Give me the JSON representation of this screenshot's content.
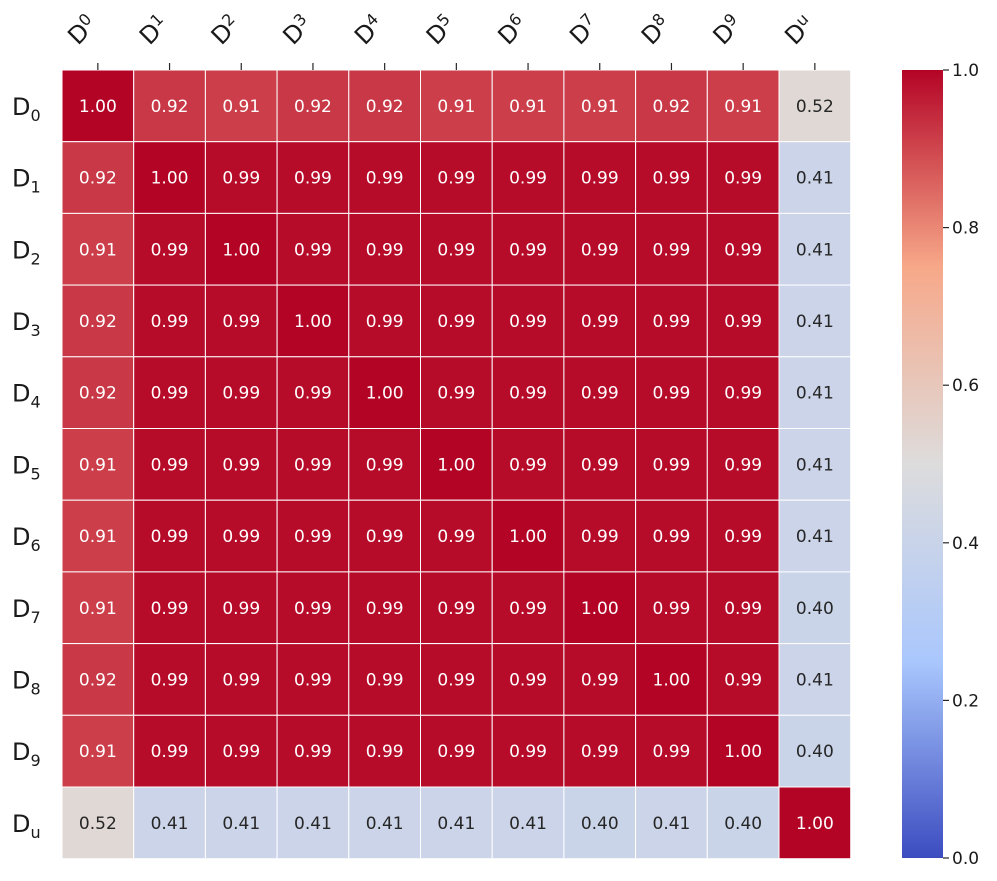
{
  "chart_data": {
    "type": "heatmap",
    "title": "",
    "xlabel": "",
    "ylabel": "",
    "row_labels": [
      {
        "base": "D",
        "sub": "0"
      },
      {
        "base": "D",
        "sub": "1"
      },
      {
        "base": "D",
        "sub": "2"
      },
      {
        "base": "D",
        "sub": "3"
      },
      {
        "base": "D",
        "sub": "4"
      },
      {
        "base": "D",
        "sub": "5"
      },
      {
        "base": "D",
        "sub": "6"
      },
      {
        "base": "D",
        "sub": "7"
      },
      {
        "base": "D",
        "sub": "8"
      },
      {
        "base": "D",
        "sub": "9"
      },
      {
        "base": "D",
        "sub": "u"
      }
    ],
    "col_labels": [
      {
        "base": "D",
        "sub": "0"
      },
      {
        "base": "D",
        "sub": "1"
      },
      {
        "base": "D",
        "sub": "2"
      },
      {
        "base": "D",
        "sub": "3"
      },
      {
        "base": "D",
        "sub": "4"
      },
      {
        "base": "D",
        "sub": "5"
      },
      {
        "base": "D",
        "sub": "6"
      },
      {
        "base": "D",
        "sub": "7"
      },
      {
        "base": "D",
        "sub": "8"
      },
      {
        "base": "D",
        "sub": "9"
      },
      {
        "base": "D",
        "sub": "u"
      }
    ],
    "values": [
      [
        1.0,
        0.92,
        0.91,
        0.92,
        0.92,
        0.91,
        0.91,
        0.91,
        0.92,
        0.91,
        0.52
      ],
      [
        0.92,
        1.0,
        0.99,
        0.99,
        0.99,
        0.99,
        0.99,
        0.99,
        0.99,
        0.99,
        0.41
      ],
      [
        0.91,
        0.99,
        1.0,
        0.99,
        0.99,
        0.99,
        0.99,
        0.99,
        0.99,
        0.99,
        0.41
      ],
      [
        0.92,
        0.99,
        0.99,
        1.0,
        0.99,
        0.99,
        0.99,
        0.99,
        0.99,
        0.99,
        0.41
      ],
      [
        0.92,
        0.99,
        0.99,
        0.99,
        1.0,
        0.99,
        0.99,
        0.99,
        0.99,
        0.99,
        0.41
      ],
      [
        0.91,
        0.99,
        0.99,
        0.99,
        0.99,
        1.0,
        0.99,
        0.99,
        0.99,
        0.99,
        0.41
      ],
      [
        0.91,
        0.99,
        0.99,
        0.99,
        0.99,
        0.99,
        1.0,
        0.99,
        0.99,
        0.99,
        0.41
      ],
      [
        0.91,
        0.99,
        0.99,
        0.99,
        0.99,
        0.99,
        0.99,
        1.0,
        0.99,
        0.99,
        0.4
      ],
      [
        0.92,
        0.99,
        0.99,
        0.99,
        0.99,
        0.99,
        0.99,
        0.99,
        1.0,
        0.99,
        0.41
      ],
      [
        0.91,
        0.99,
        0.99,
        0.99,
        0.99,
        0.99,
        0.99,
        0.99,
        0.99,
        1.0,
        0.4
      ],
      [
        0.52,
        0.41,
        0.41,
        0.41,
        0.41,
        0.41,
        0.41,
        0.4,
        0.41,
        0.4,
        1.0
      ]
    ],
    "value_format": "2 decimals",
    "color_range": [
      0.0,
      1.0
    ],
    "colormap": "coolwarm",
    "colormap_stops": [
      "#3b4cc0",
      "#aac7fd",
      "#dddcdc",
      "#f7a889",
      "#b40426"
    ],
    "colorbar": {
      "position": "right",
      "ticks": [
        0.0,
        0.2,
        0.4,
        0.6,
        0.8,
        1.0
      ],
      "tick_labels": [
        "0.0",
        "0.2",
        "0.4",
        "0.6",
        "0.8",
        "1.0"
      ]
    },
    "grid_lines": "white",
    "x_axis_position": "top",
    "x_tick_label_rotation": "diagonal"
  }
}
